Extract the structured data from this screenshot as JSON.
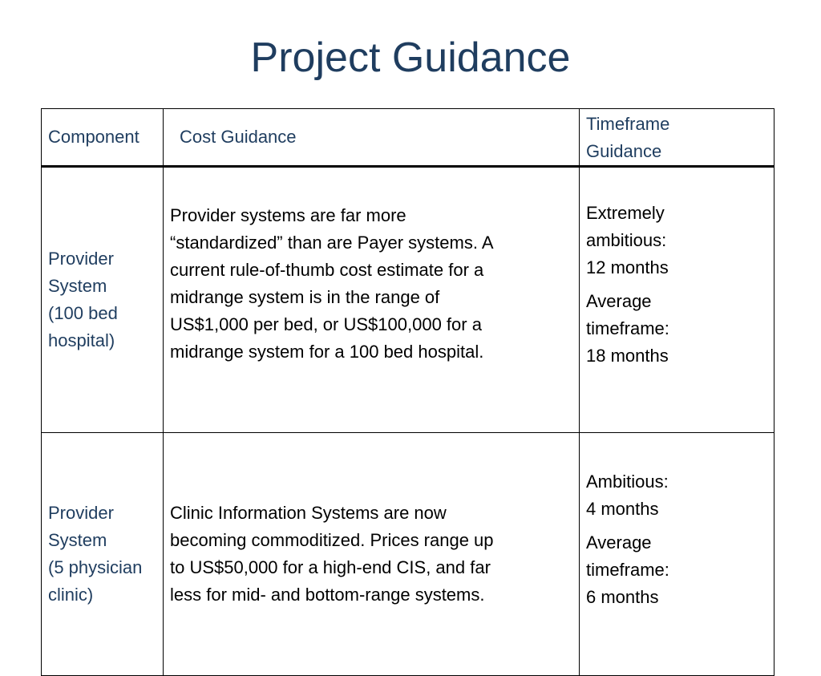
{
  "title": "Project Guidance",
  "table": {
    "headers": {
      "component": "Component",
      "cost": "Cost Guidance",
      "timeframe_line1": "Timeframe",
      "timeframe_line2": "Guidance"
    },
    "rows": [
      {
        "component_lines": [
          "Provider",
          "System",
          "(100 bed",
          "hospital)"
        ],
        "cost_lines": [
          "Provider systems are far more",
          "“standardized” than are Payer systems. A",
          "current rule-of-thumb cost estimate for a",
          "midrange system is in the range of",
          "US$1,000 per bed, or US$100,000 for a",
          "midrange system for a 100 bed hospital."
        ],
        "timeframes": [
          {
            "lines": [
              "Extremely",
              "ambitious:",
              "12 months"
            ]
          },
          {
            "lines": [
              "Average",
              "timeframe:",
              "18 months"
            ]
          }
        ]
      },
      {
        "component_lines": [
          "Provider",
          "System",
          "(5 physician",
          "clinic)"
        ],
        "cost_lines": [
          "Clinic Information Systems are now",
          "becoming commoditized. Prices range up",
          "to US$50,000 for a high-end CIS, and far",
          "less for mid- and bottom-range systems."
        ],
        "timeframes": [
          {
            "lines": [
              "Ambitious:",
              "4 months"
            ]
          },
          {
            "lines": [
              "Average",
              "timeframe:",
              "6 months"
            ]
          }
        ]
      }
    ]
  }
}
